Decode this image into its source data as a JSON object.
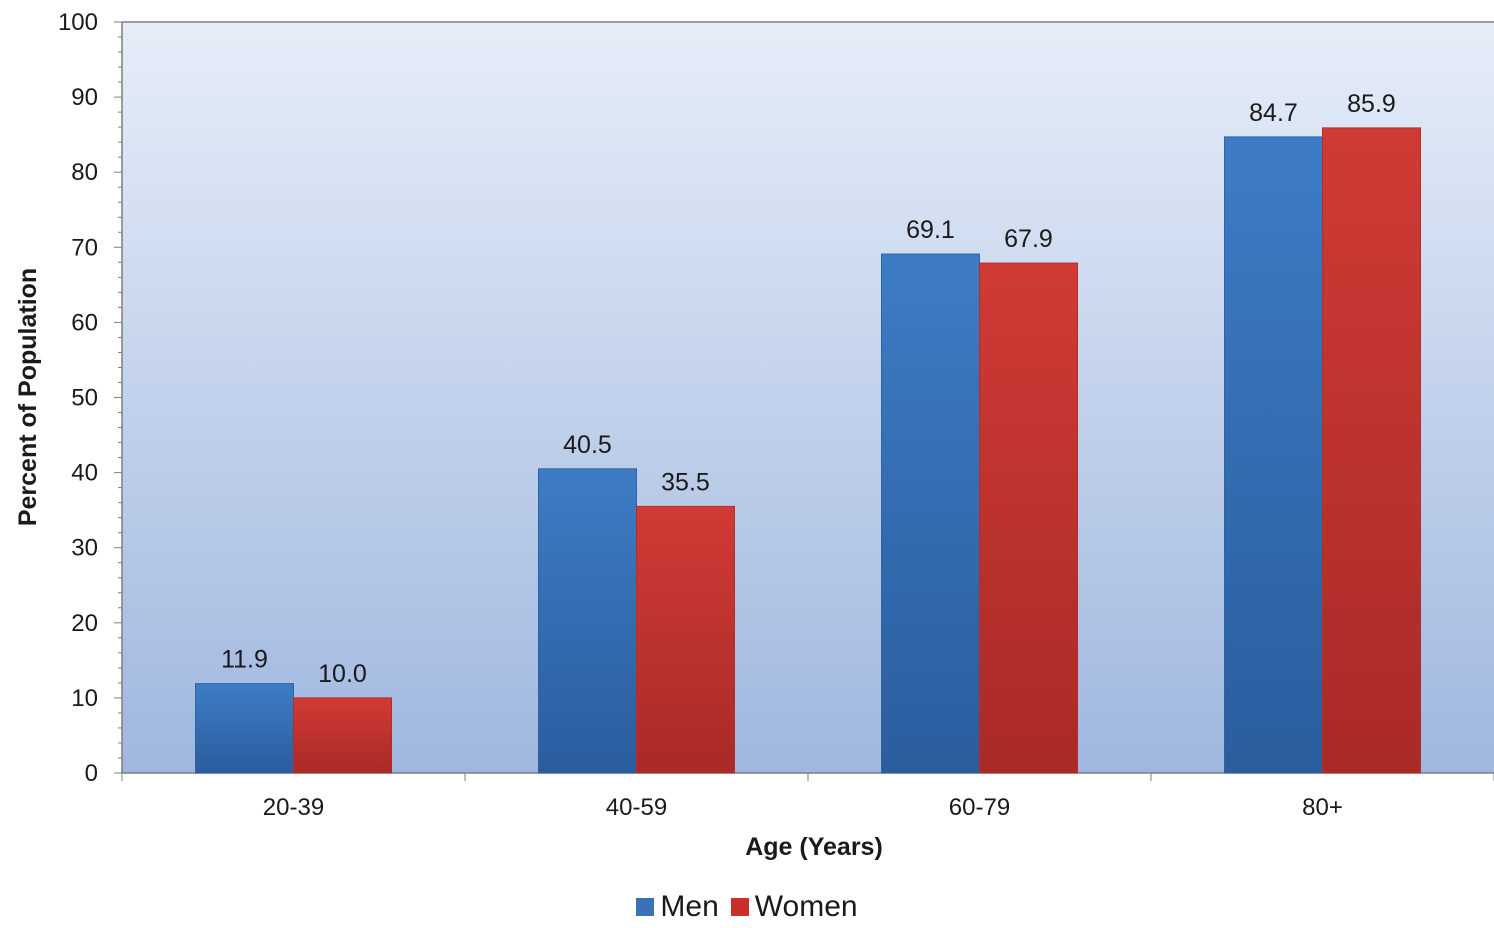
{
  "chart_data": {
    "type": "bar",
    "categories": [
      "20-39",
      "40-59",
      "60-79",
      "80+"
    ],
    "series": [
      {
        "name": "Men",
        "values": [
          11.9,
          40.5,
          69.1,
          84.7
        ],
        "color": "#3a72b8"
      },
      {
        "name": "Women",
        "values": [
          10.0,
          35.5,
          67.9,
          85.9
        ],
        "color": "#c9302c"
      }
    ],
    "value_labels": {
      "Men": [
        "11.9",
        "40.5",
        "69.1",
        "84.7"
      ],
      "Women": [
        "10.0",
        "35.5",
        "67.9",
        "85.9"
      ]
    },
    "title": "",
    "xlabel": "Age (Years)",
    "ylabel": "Percent of Population",
    "ylim": [
      0,
      100
    ],
    "yticks": [
      "0",
      "10",
      "20",
      "30",
      "40",
      "50",
      "60",
      "70",
      "80",
      "90",
      "100"
    ],
    "legend_position": "bottom",
    "plot_background": "gradient"
  }
}
